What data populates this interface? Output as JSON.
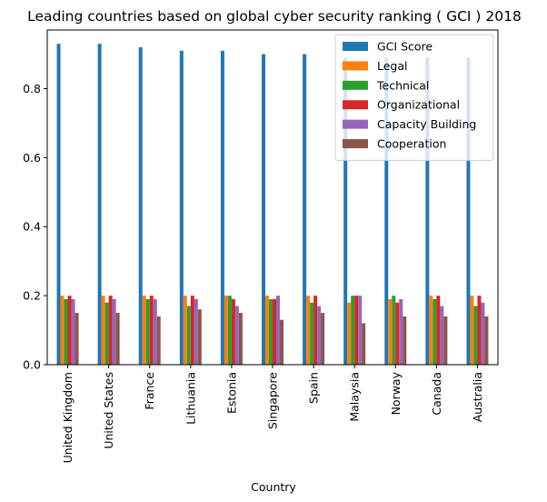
{
  "chart_data": {
    "type": "bar",
    "title": "Leading countries based on global cyber security ranking ( GCI ) 2018",
    "xlabel": "Country",
    "ylabel": "",
    "ylim": [
      0,
      0.97
    ],
    "yticks": [
      "0.0",
      "0.2",
      "0.4",
      "0.6",
      "0.8"
    ],
    "legend_position": "top-right",
    "categories": [
      "United Kingdom",
      "United States",
      "France",
      "Lithuania",
      "Estonia",
      "Singapore",
      "Spain",
      "Malaysia",
      "Norway",
      "Canada",
      "Australia"
    ],
    "series": [
      {
        "name": "GCI Score",
        "color": "#1f77b4",
        "values": [
          0.93,
          0.93,
          0.92,
          0.91,
          0.91,
          0.9,
          0.9,
          0.89,
          0.89,
          0.89,
          0.89
        ]
      },
      {
        "name": "Legal",
        "color": "#ff7f0e",
        "values": [
          0.2,
          0.2,
          0.2,
          0.2,
          0.2,
          0.2,
          0.2,
          0.18,
          0.19,
          0.2,
          0.2
        ]
      },
      {
        "name": "Technical",
        "color": "#2ca02c",
        "values": [
          0.19,
          0.18,
          0.19,
          0.17,
          0.2,
          0.19,
          0.18,
          0.2,
          0.2,
          0.19,
          0.17
        ]
      },
      {
        "name": "Organizational",
        "color": "#d62728",
        "values": [
          0.2,
          0.2,
          0.2,
          0.2,
          0.19,
          0.19,
          0.2,
          0.2,
          0.18,
          0.2,
          0.2
        ]
      },
      {
        "name": "Capacity Building",
        "color": "#9467bd",
        "values": [
          0.19,
          0.19,
          0.19,
          0.19,
          0.17,
          0.2,
          0.17,
          0.2,
          0.19,
          0.17,
          0.18
        ]
      },
      {
        "name": "Cooperation",
        "color": "#8c564b",
        "values": [
          0.15,
          0.15,
          0.14,
          0.16,
          0.15,
          0.13,
          0.15,
          0.12,
          0.14,
          0.14,
          0.14
        ]
      }
    ]
  }
}
